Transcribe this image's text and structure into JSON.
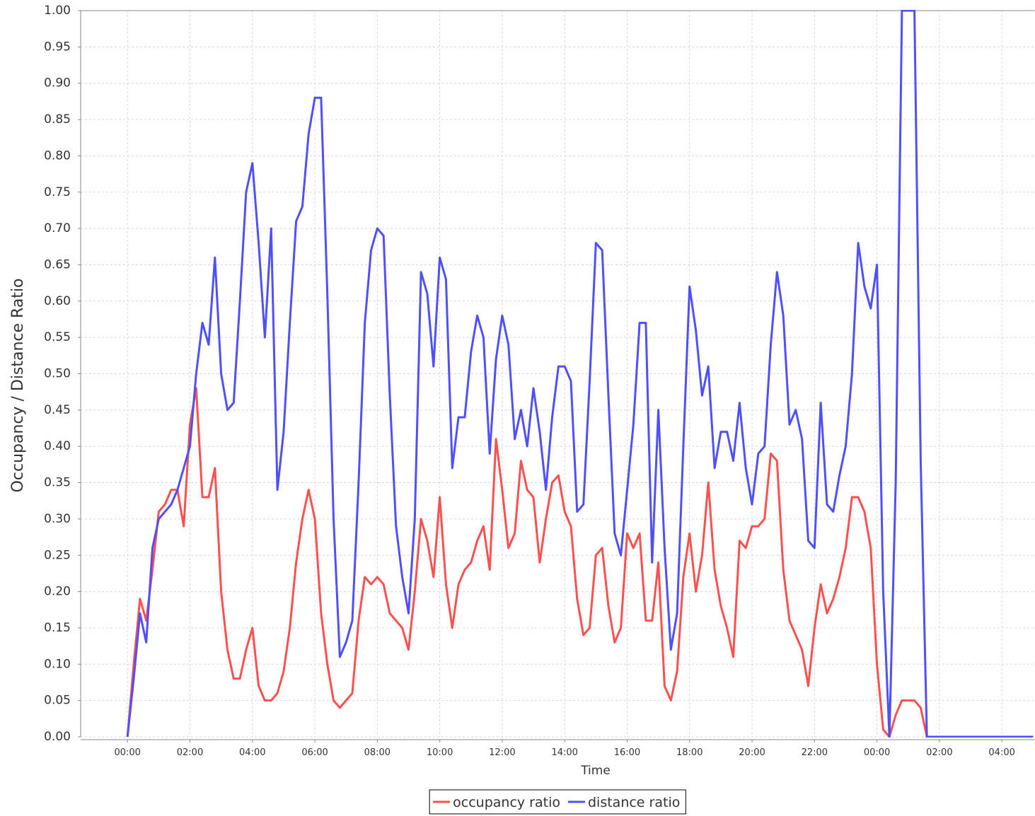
{
  "chart_data": {
    "type": "line",
    "x_label": "Time",
    "y_label": "Occupancy / Distance Ratio",
    "xlim": [
      -1.5,
      29.05
    ],
    "ylim": [
      0,
      1
    ],
    "xticks": [
      {
        "value": 0,
        "label": "00:00"
      },
      {
        "value": 2,
        "label": "02:00"
      },
      {
        "value": 4,
        "label": "04:00"
      },
      {
        "value": 6,
        "label": "06:00"
      },
      {
        "value": 8,
        "label": "08:00"
      },
      {
        "value": 10,
        "label": "10:00"
      },
      {
        "value": 12,
        "label": "12:00"
      },
      {
        "value": 14,
        "label": "14:00"
      },
      {
        "value": 16,
        "label": "16:00"
      },
      {
        "value": 18,
        "label": "18:00"
      },
      {
        "value": 20,
        "label": "20:00"
      },
      {
        "value": 22,
        "label": "22:00"
      },
      {
        "value": 24,
        "label": "00:00"
      },
      {
        "value": 26,
        "label": "02:00"
      },
      {
        "value": 28,
        "label": "04:00"
      }
    ],
    "yticks": [
      {
        "value": 0,
        "label": "0.00"
      },
      {
        "value": 0.05,
        "label": "0.05"
      },
      {
        "value": 0.1,
        "label": "0.10"
      },
      {
        "value": 0.15,
        "label": "0.15"
      },
      {
        "value": 0.2,
        "label": "0.20"
      },
      {
        "value": 0.25,
        "label": "0.25"
      },
      {
        "value": 0.3,
        "label": "0.30"
      },
      {
        "value": 0.35,
        "label": "0.35"
      },
      {
        "value": 0.4,
        "label": "0.40"
      },
      {
        "value": 0.45,
        "label": "0.45"
      },
      {
        "value": 0.5,
        "label": "0.50"
      },
      {
        "value": 0.55,
        "label": "0.55"
      },
      {
        "value": 0.6,
        "label": "0.60"
      },
      {
        "value": 0.65,
        "label": "0.65"
      },
      {
        "value": 0.7,
        "label": "0.70"
      },
      {
        "value": 0.75,
        "label": "0.75"
      },
      {
        "value": 0.8,
        "label": "0.80"
      },
      {
        "value": 0.85,
        "label": "0.85"
      },
      {
        "value": 0.9,
        "label": "0.90"
      },
      {
        "value": 0.95,
        "label": "0.95"
      },
      {
        "value": 1,
        "label": "1.00"
      }
    ],
    "grid": true,
    "legend": "bottom",
    "x": [
      0,
      0.2,
      0.4,
      0.6,
      0.8,
      1,
      1.2,
      1.4,
      1.6,
      1.8,
      2,
      2.2,
      2.4,
      2.6,
      2.8,
      3,
      3.2,
      3.4,
      3.6,
      3.8,
      4,
      4.2,
      4.4,
      4.6,
      4.8,
      5,
      5.2,
      5.4,
      5.6,
      5.8,
      6,
      6.2,
      6.4,
      6.6,
      6.8,
      7,
      7.2,
      7.4,
      7.6,
      7.8,
      8,
      8.2,
      8.4,
      8.6,
      8.8,
      9,
      9.2,
      9.4,
      9.6,
      9.8,
      10,
      10.2,
      10.4,
      10.6,
      10.8,
      11,
      11.2,
      11.4,
      11.6,
      11.8,
      12,
      12.2,
      12.4,
      12.6,
      12.8,
      13,
      13.2,
      13.4,
      13.6,
      13.8,
      14,
      14.2,
      14.4,
      14.6,
      14.8,
      15,
      15.2,
      15.4,
      15.6,
      15.8,
      16,
      16.2,
      16.4,
      16.6,
      16.8,
      17,
      17.2,
      17.4,
      17.6,
      17.8,
      18,
      18.2,
      18.4,
      18.6,
      18.8,
      19,
      19.2,
      19.4,
      19.6,
      19.8,
      20,
      20.2,
      20.4,
      20.6,
      20.8,
      21,
      21.2,
      21.4,
      21.6,
      21.8,
      22,
      22.2,
      22.4,
      22.6,
      22.8,
      23,
      23.2,
      23.4,
      23.6,
      23.8,
      24,
      24.2,
      24.4,
      24.6,
      24.8,
      25,
      25.2,
      25.4,
      25.6,
      29
    ],
    "series": [
      {
        "name": "occupancy ratio",
        "color": "#ff4f4f",
        "values": [
          0.0,
          0.1,
          0.19,
          0.16,
          0.23,
          0.31,
          0.32,
          0.34,
          0.34,
          0.29,
          0.43,
          0.48,
          0.33,
          0.33,
          0.37,
          0.2,
          0.12,
          0.08,
          0.08,
          0.12,
          0.15,
          0.07,
          0.05,
          0.05,
          0.06,
          0.09,
          0.15,
          0.24,
          0.3,
          0.34,
          0.3,
          0.17,
          0.1,
          0.05,
          0.04,
          0.05,
          0.06,
          0.16,
          0.22,
          0.21,
          0.22,
          0.21,
          0.17,
          0.16,
          0.15,
          0.12,
          0.2,
          0.3,
          0.27,
          0.22,
          0.33,
          0.21,
          0.15,
          0.21,
          0.23,
          0.24,
          0.27,
          0.29,
          0.23,
          0.41,
          0.34,
          0.26,
          0.28,
          0.38,
          0.34,
          0.33,
          0.24,
          0.3,
          0.35,
          0.36,
          0.31,
          0.29,
          0.19,
          0.14,
          0.15,
          0.25,
          0.26,
          0.18,
          0.13,
          0.15,
          0.28,
          0.26,
          0.28,
          0.16,
          0.16,
          0.24,
          0.07,
          0.05,
          0.09,
          0.22,
          0.28,
          0.2,
          0.25,
          0.35,
          0.23,
          0.18,
          0.15,
          0.11,
          0.27,
          0.26,
          0.29,
          0.29,
          0.3,
          0.39,
          0.38,
          0.23,
          0.16,
          0.14,
          0.12,
          0.07,
          0.15,
          0.21,
          0.17,
          0.19,
          0.22,
          0.26,
          0.33,
          0.33,
          0.31,
          0.26,
          0.1,
          0.01,
          0.0,
          0.03,
          0.05,
          0.05,
          0.05,
          0.04,
          0.0,
          0.0
        ]
      },
      {
        "name": "distance ratio",
        "color": "#4f4fff",
        "values": [
          0.0,
          0.08,
          0.17,
          0.13,
          0.26,
          0.3,
          0.31,
          0.32,
          0.34,
          0.37,
          0.4,
          0.5,
          0.57,
          0.54,
          0.66,
          0.5,
          0.45,
          0.46,
          0.6,
          0.75,
          0.79,
          0.68,
          0.55,
          0.7,
          0.34,
          0.42,
          0.57,
          0.71,
          0.73,
          0.83,
          0.88,
          0.88,
          0.61,
          0.3,
          0.11,
          0.13,
          0.16,
          0.35,
          0.57,
          0.67,
          0.7,
          0.69,
          0.47,
          0.29,
          0.22,
          0.17,
          0.3,
          0.64,
          0.61,
          0.51,
          0.66,
          0.63,
          0.37,
          0.44,
          0.44,
          0.53,
          0.58,
          0.55,
          0.39,
          0.52,
          0.58,
          0.54,
          0.41,
          0.45,
          0.4,
          0.48,
          0.42,
          0.34,
          0.44,
          0.51,
          0.51,
          0.49,
          0.31,
          0.32,
          0.49,
          0.68,
          0.67,
          0.47,
          0.28,
          0.25,
          0.34,
          0.43,
          0.57,
          0.57,
          0.24,
          0.45,
          0.26,
          0.12,
          0.17,
          0.4,
          0.62,
          0.56,
          0.47,
          0.51,
          0.37,
          0.42,
          0.42,
          0.38,
          0.46,
          0.37,
          0.32,
          0.39,
          0.4,
          0.54,
          0.64,
          0.58,
          0.43,
          0.45,
          0.41,
          0.27,
          0.26,
          0.46,
          0.32,
          0.31,
          0.36,
          0.4,
          0.5,
          0.68,
          0.62,
          0.59,
          0.65,
          0.2,
          0.0,
          0.35,
          1.0,
          1.0,
          1.0,
          0.38,
          0.0,
          0.0
        ]
      }
    ]
  }
}
